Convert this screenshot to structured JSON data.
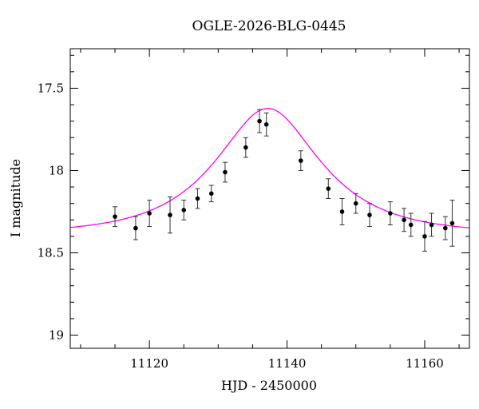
{
  "chart_data": {
    "type": "scatter",
    "title": "OGLE-2026-BLG-0445",
    "xlabel": "HJD - 2450000",
    "ylabel": "I magnitude",
    "xlim": [
      11108.5,
      11166.5
    ],
    "ylim": [
      19.08,
      17.26
    ],
    "y_inverted": true,
    "grid": false,
    "x_ticks": [
      {
        "value": 11120,
        "label": "11120"
      },
      {
        "value": 11140,
        "label": "11140"
      },
      {
        "value": 11160,
        "label": "11160"
      }
    ],
    "y_ticks": [
      {
        "value": 17.5,
        "label": "17.5"
      },
      {
        "value": 18.0,
        "label": "18"
      },
      {
        "value": 18.5,
        "label": "18.5"
      },
      {
        "value": 19.0,
        "label": "19"
      }
    ],
    "series": [
      {
        "type": "scatter",
        "color": "#000000",
        "points": [
          {
            "x": 11115.0,
            "y": 18.28,
            "err": 0.06
          },
          {
            "x": 11118.0,
            "y": 18.35,
            "err": 0.07
          },
          {
            "x": 11120.0,
            "y": 18.26,
            "err": 0.08
          },
          {
            "x": 11123.0,
            "y": 18.27,
            "err": 0.11
          },
          {
            "x": 11125.0,
            "y": 18.24,
            "err": 0.06
          },
          {
            "x": 11127.0,
            "y": 18.17,
            "err": 0.06
          },
          {
            "x": 11129.0,
            "y": 18.14,
            "err": 0.05
          },
          {
            "x": 11131.0,
            "y": 18.01,
            "err": 0.06
          },
          {
            "x": 11134.0,
            "y": 17.86,
            "err": 0.06
          },
          {
            "x": 11136.0,
            "y": 17.7,
            "err": 0.07
          },
          {
            "x": 11137.0,
            "y": 17.72,
            "err": 0.07
          },
          {
            "x": 11142.0,
            "y": 17.94,
            "err": 0.06
          },
          {
            "x": 11146.0,
            "y": 18.11,
            "err": 0.06
          },
          {
            "x": 11148.0,
            "y": 18.25,
            "err": 0.08
          },
          {
            "x": 11150.0,
            "y": 18.2,
            "err": 0.06
          },
          {
            "x": 11152.0,
            "y": 18.27,
            "err": 0.07
          },
          {
            "x": 11155.0,
            "y": 18.26,
            "err": 0.07
          },
          {
            "x": 11157.0,
            "y": 18.3,
            "err": 0.07
          },
          {
            "x": 11158.0,
            "y": 18.33,
            "err": 0.07
          },
          {
            "x": 11160.0,
            "y": 18.4,
            "err": 0.09
          },
          {
            "x": 11161.0,
            "y": 18.33,
            "err": 0.07
          },
          {
            "x": 11163.0,
            "y": 18.35,
            "err": 0.07
          },
          {
            "x": 11164.0,
            "y": 18.32,
            "err": 0.14
          }
        ]
      },
      {
        "type": "line",
        "color": "#ff00ff",
        "model": "pspl",
        "t0": 11137.2,
        "u0": 0.55,
        "tE": 12.5,
        "baseline_mag": 18.385
      }
    ]
  }
}
